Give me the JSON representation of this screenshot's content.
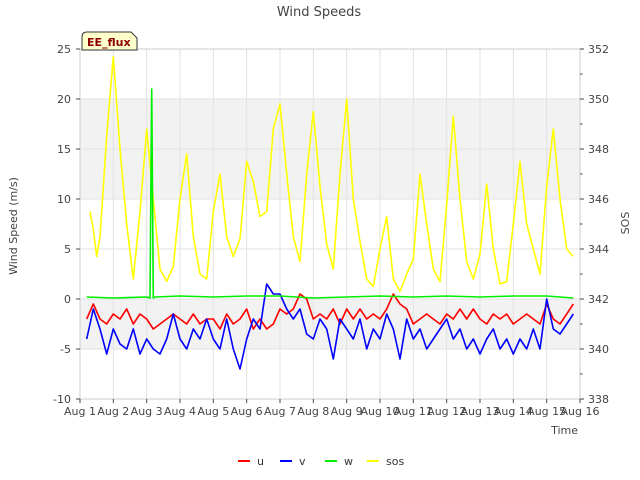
{
  "chart_data": {
    "type": "line",
    "title": "Wind Speeds",
    "xlabel": "Time",
    "ylabel": "Wind Speed (m/s)",
    "y2label": "SOS",
    "annotation": "EE_flux",
    "ylim": [
      -10,
      25
    ],
    "y2lim": [
      338,
      352
    ],
    "xlim": [
      0,
      15
    ],
    "x_ticks": [
      "Aug 1",
      "Aug 2",
      "Aug 3",
      "Aug 4",
      "Aug 5",
      "Aug 6",
      "Aug 7",
      "Aug 8",
      "Aug 9",
      "Aug 10",
      "Aug 11",
      "Aug 12",
      "Aug 13",
      "Aug 14",
      "Aug 15",
      "Aug 16"
    ],
    "y_ticks": [
      -10,
      -5,
      0,
      5,
      10,
      15,
      20,
      25
    ],
    "y2_ticks": [
      338,
      340,
      342,
      344,
      346,
      348,
      350,
      352
    ],
    "bands": [
      [
        -5,
        0
      ],
      [
        10,
        20
      ]
    ],
    "series": [
      {
        "name": "u",
        "color": "#ff0000",
        "axis": "left",
        "x": [
          0.2,
          0.4,
          0.6,
          0.8,
          1.0,
          1.2,
          1.4,
          1.6,
          1.8,
          2.0,
          2.2,
          2.4,
          2.6,
          2.8,
          3.0,
          3.2,
          3.4,
          3.6,
          3.8,
          4.0,
          4.2,
          4.4,
          4.6,
          4.8,
          5.0,
          5.2,
          5.4,
          5.6,
          5.8,
          6.0,
          6.2,
          6.4,
          6.6,
          6.8,
          7.0,
          7.2,
          7.4,
          7.6,
          7.8,
          8.0,
          8.2,
          8.4,
          8.6,
          8.8,
          9.0,
          9.2,
          9.4,
          9.6,
          9.8,
          10.0,
          10.2,
          10.4,
          10.6,
          10.8,
          11.0,
          11.2,
          11.4,
          11.6,
          11.8,
          12.0,
          12.2,
          12.4,
          12.6,
          12.8,
          13.0,
          13.2,
          13.4,
          13.6,
          13.8,
          14.0,
          14.2,
          14.4,
          14.6,
          14.8
        ],
        "values": [
          -2,
          -0.5,
          -2,
          -2.5,
          -1.5,
          -2,
          -1,
          -2.5,
          -1.5,
          -2,
          -3,
          -2.5,
          -2,
          -1.5,
          -2,
          -2.5,
          -1.5,
          -2.5,
          -2,
          -2,
          -3,
          -1.5,
          -2.5,
          -2,
          -1,
          -3,
          -2,
          -3,
          -2.5,
          -1,
          -1.5,
          -1,
          0.5,
          0,
          -2,
          -1.5,
          -2,
          -1,
          -2.5,
          -1,
          -2,
          -1,
          -2,
          -1.5,
          -2,
          -1,
          0.5,
          -0.5,
          -1,
          -2.5,
          -2,
          -1.5,
          -2,
          -2.5,
          -1.5,
          -2,
          -1,
          -2,
          -1,
          -2,
          -2.5,
          -1.5,
          -2,
          -1.5,
          -2.5,
          -2,
          -1.5,
          -2,
          -2.5,
          -0.5,
          -2,
          -2.5,
          -1.5,
          -0.5
        ]
      },
      {
        "name": "v",
        "color": "#0000ff",
        "axis": "left",
        "x": [
          0.2,
          0.4,
          0.6,
          0.8,
          1.0,
          1.2,
          1.4,
          1.6,
          1.8,
          2.0,
          2.2,
          2.4,
          2.6,
          2.8,
          3.0,
          3.2,
          3.4,
          3.6,
          3.8,
          4.0,
          4.2,
          4.4,
          4.6,
          4.8,
          5.0,
          5.2,
          5.4,
          5.6,
          5.8,
          6.0,
          6.2,
          6.4,
          6.6,
          6.8,
          7.0,
          7.2,
          7.4,
          7.6,
          7.8,
          8.0,
          8.2,
          8.4,
          8.6,
          8.8,
          9.0,
          9.2,
          9.4,
          9.6,
          9.8,
          10.0,
          10.2,
          10.4,
          10.6,
          10.8,
          11.0,
          11.2,
          11.4,
          11.6,
          11.8,
          12.0,
          12.2,
          12.4,
          12.6,
          12.8,
          13.0,
          13.2,
          13.4,
          13.6,
          13.8,
          14.0,
          14.2,
          14.4,
          14.6,
          14.8
        ],
        "values": [
          -4,
          -1,
          -3,
          -5.5,
          -3,
          -4.5,
          -5,
          -3,
          -5.5,
          -4,
          -5,
          -5.5,
          -4,
          -1.5,
          -4,
          -5,
          -3,
          -4,
          -2,
          -4,
          -5,
          -2,
          -5,
          -7,
          -4,
          -2,
          -3,
          1.5,
          0.5,
          0.5,
          -1,
          -2,
          -1,
          -3.5,
          -4,
          -2,
          -3,
          -6,
          -2,
          -3,
          -4,
          -2,
          -5,
          -3,
          -4,
          -1.5,
          -3,
          -6,
          -2,
          -4,
          -3,
          -5,
          -4,
          -3,
          -2,
          -4,
          -3,
          -5,
          -4,
          -5.5,
          -4,
          -3,
          -5,
          -4,
          -5.5,
          -4,
          -5,
          -3,
          -5,
          0,
          -3,
          -3.5,
          -2.5,
          -1.5
        ]
      },
      {
        "name": "w",
        "color": "#00ee00",
        "axis": "left",
        "x": [
          0.2,
          1.0,
          2.0,
          2.1,
          2.15,
          2.2,
          2.25,
          3.0,
          4.0,
          5.0,
          6.0,
          7.0,
          8.0,
          9.0,
          10.0,
          11.0,
          12.0,
          13.0,
          14.0,
          14.8
        ],
        "values": [
          0.2,
          0.1,
          0.2,
          0.1,
          21,
          0.1,
          0.2,
          0.3,
          0.2,
          0.3,
          0.3,
          0.1,
          0.2,
          0.3,
          0.2,
          0.3,
          0.2,
          0.3,
          0.3,
          0.1
        ]
      },
      {
        "name": "sos",
        "color": "#ffff00",
        "axis": "right",
        "x": [
          0.3,
          0.4,
          0.5,
          0.6,
          0.8,
          1.0,
          1.2,
          1.4,
          1.6,
          1.8,
          2.0,
          2.2,
          2.4,
          2.6,
          2.8,
          3.0,
          3.2,
          3.4,
          3.6,
          3.8,
          4.0,
          4.2,
          4.4,
          4.6,
          4.8,
          5.0,
          5.2,
          5.4,
          5.6,
          5.8,
          6.0,
          6.2,
          6.4,
          6.6,
          6.8,
          7.0,
          7.2,
          7.4,
          7.6,
          7.8,
          8.0,
          8.2,
          8.4,
          8.6,
          8.8,
          9.0,
          9.2,
          9.4,
          9.6,
          9.8,
          10.0,
          10.2,
          10.4,
          10.6,
          10.8,
          11.0,
          11.2,
          11.4,
          11.6,
          11.8,
          12.0,
          12.2,
          12.4,
          12.6,
          12.8,
          13.0,
          13.2,
          13.4,
          13.6,
          13.8,
          14.0,
          14.2,
          14.4,
          14.6,
          14.8
        ],
        "values": [
          345.5,
          344.8,
          343.7,
          344.5,
          348.5,
          351.7,
          348.0,
          345.0,
          342.8,
          345.5,
          348.8,
          346.0,
          343.2,
          342.7,
          343.3,
          346.0,
          347.8,
          344.5,
          343.0,
          342.8,
          345.5,
          347.0,
          344.5,
          343.7,
          344.4,
          347.5,
          346.7,
          345.3,
          345.5,
          348.8,
          349.8,
          347.0,
          344.5,
          343.5,
          347.0,
          349.5,
          346.5,
          344.2,
          343.2,
          347.0,
          350.0,
          346.0,
          344.3,
          342.8,
          342.5,
          344.0,
          345.3,
          342.8,
          342.3,
          343.0,
          343.6,
          347.0,
          345.0,
          343.2,
          342.7,
          345.8,
          349.3,
          346.0,
          343.5,
          342.8,
          343.8,
          346.6,
          344.0,
          342.6,
          342.7,
          345.0,
          347.5,
          345.0,
          344.0,
          343.0,
          346.5,
          348.8,
          346.0,
          344.0,
          343.7
        ]
      }
    ]
  }
}
